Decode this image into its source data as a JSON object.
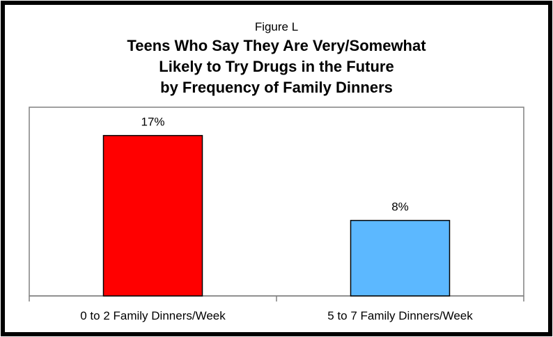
{
  "chart_data": {
    "type": "bar",
    "figure_label": "Figure L",
    "title_lines": [
      "Teens Who Say They Are Very/Somewhat",
      "Likely to Try Drugs in the Future",
      "by Frequency of Family Dinners"
    ],
    "categories": [
      "0 to 2 Family Dinners/Week",
      "5 to 7 Family Dinners/Week"
    ],
    "values": [
      17,
      8
    ],
    "data_labels": [
      "17%",
      "8%"
    ],
    "bar_colors": [
      "#ff0000",
      "#5cb8ff"
    ],
    "ylim": [
      0,
      20
    ],
    "grid": false,
    "legend": "none",
    "xlabel": "",
    "ylabel": ""
  }
}
